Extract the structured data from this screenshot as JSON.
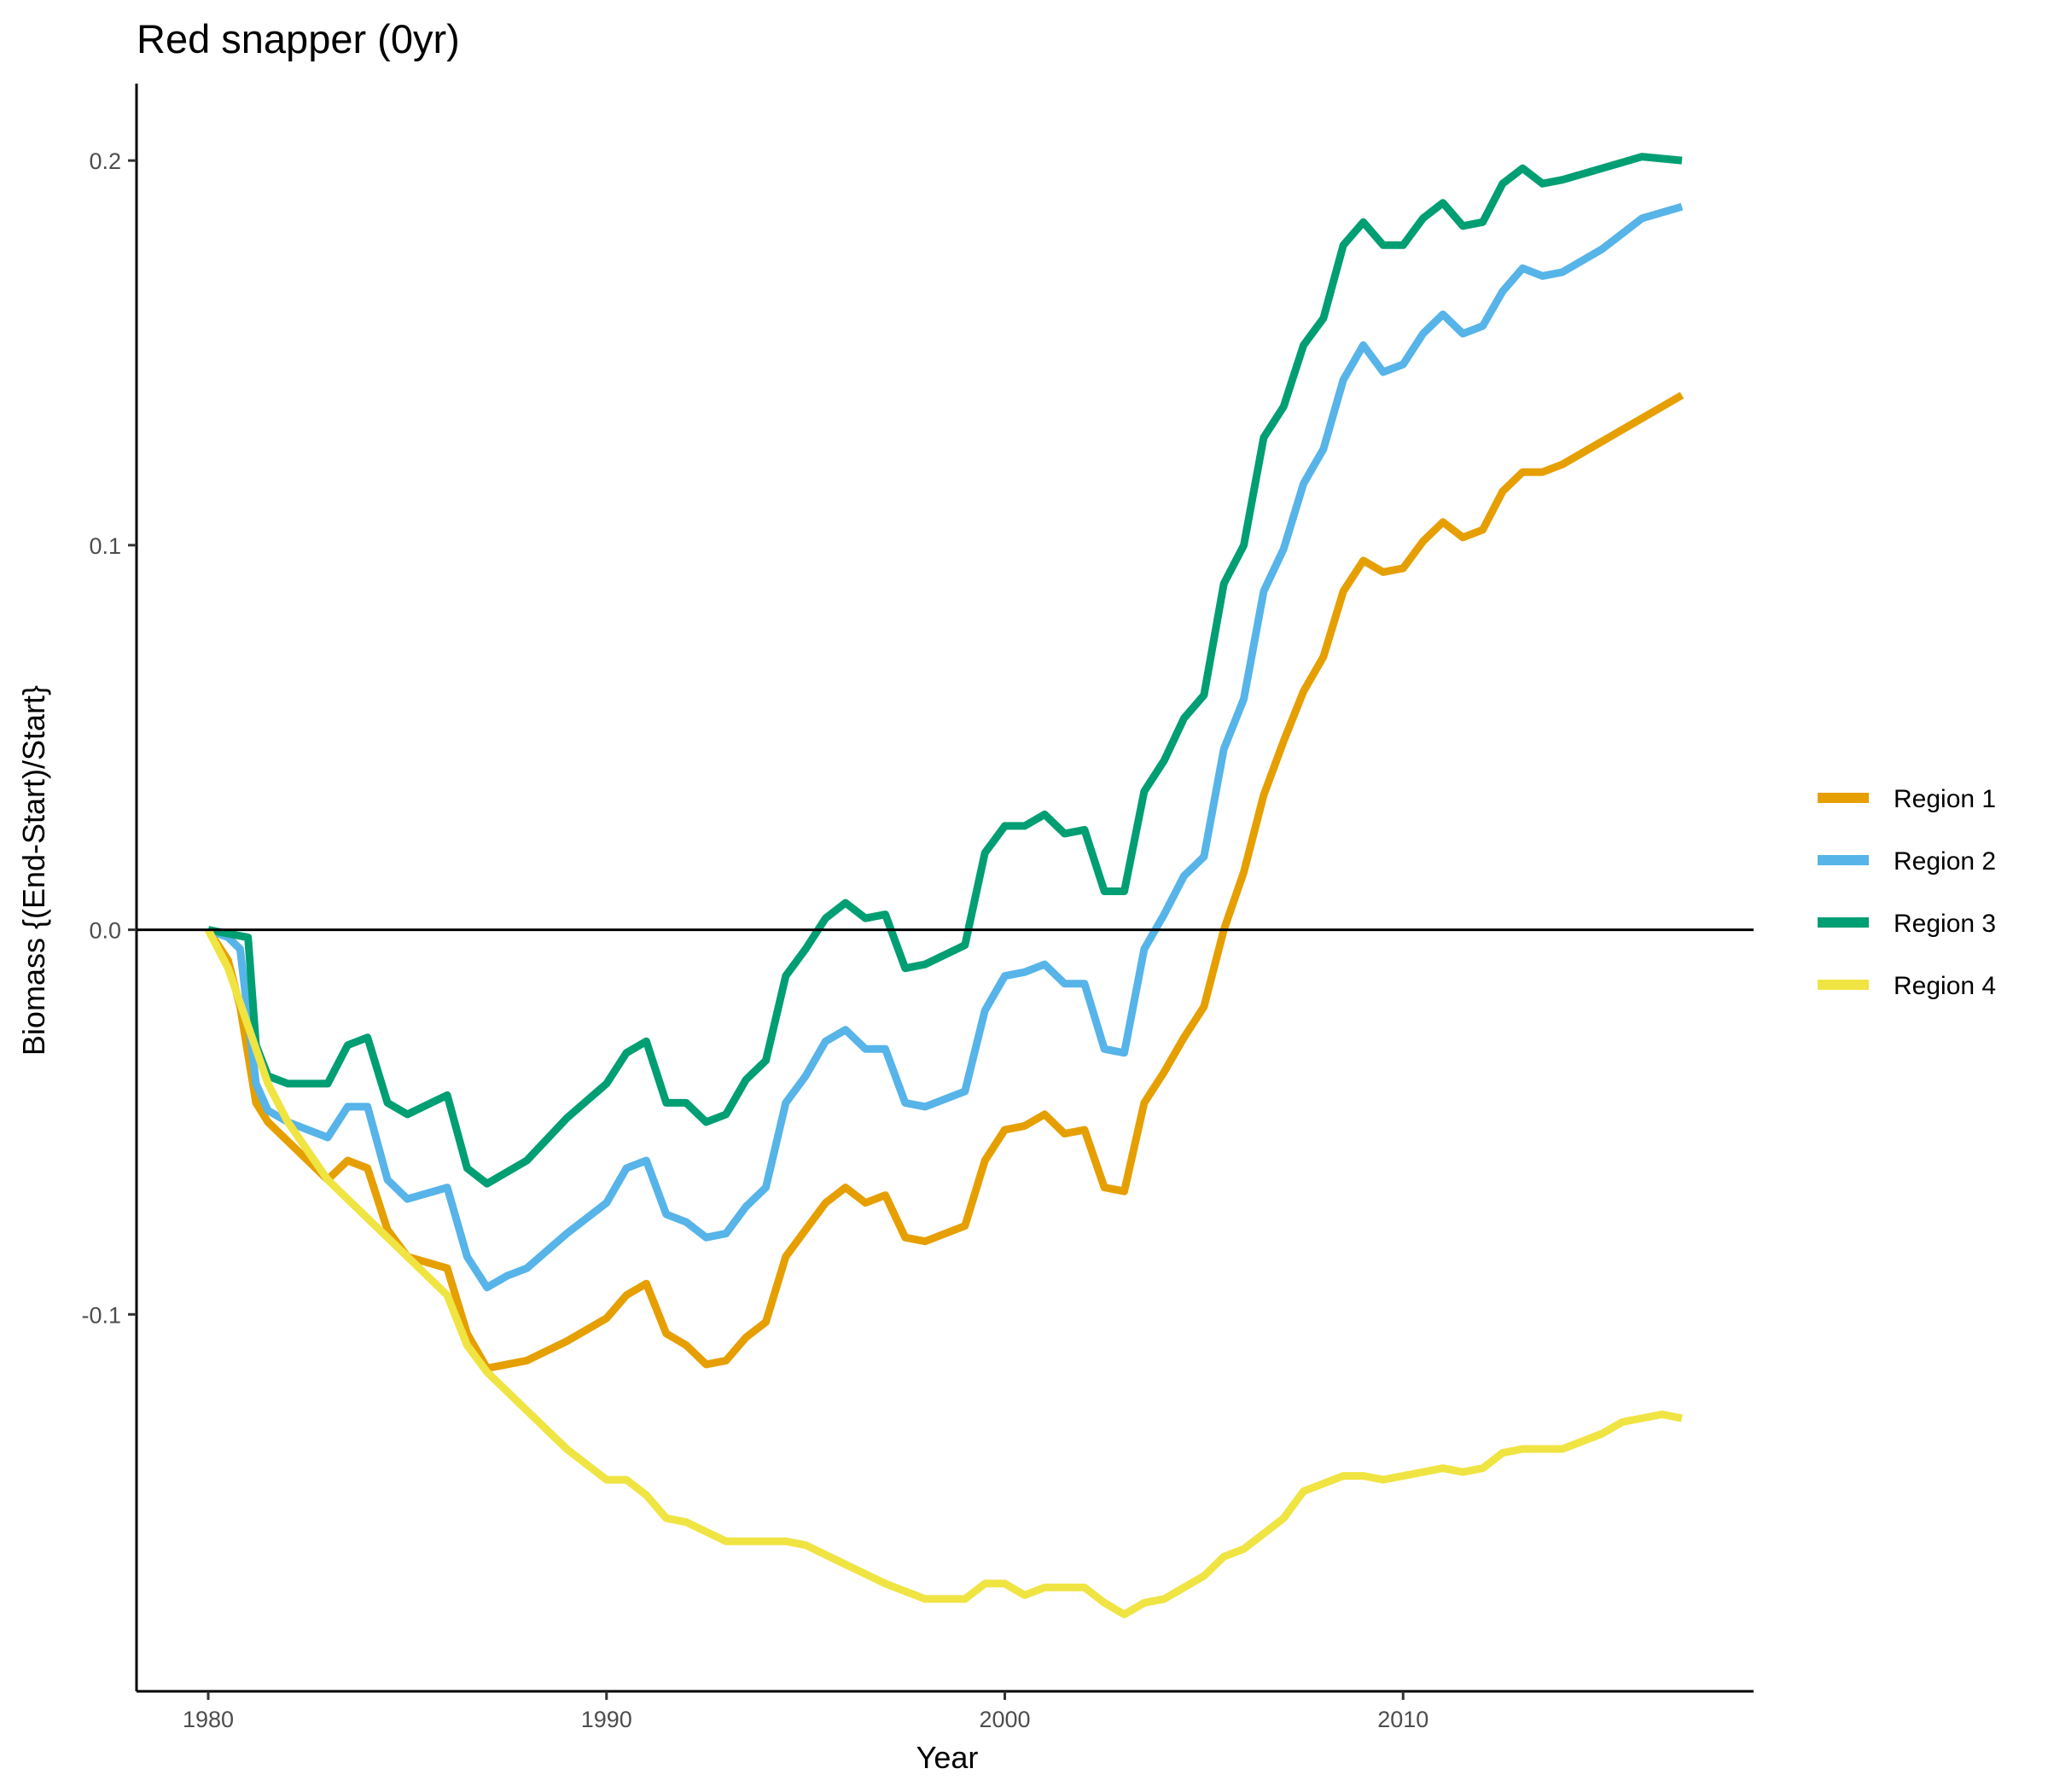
{
  "chart_data": {
    "type": "line",
    "title": "Red snapper (0yr)",
    "xlabel": "Year",
    "ylabel": "Biomass {(End-Start)/Start}",
    "xlim": [
      1978.2,
      2018.8
    ],
    "ylim": [
      -0.198,
      0.22
    ],
    "x_ticks": [
      1980,
      1990,
      2000,
      2010
    ],
    "y_ticks": [
      -0.1,
      0.0,
      0.1,
      0.2
    ],
    "y_tick_labels": [
      "-0.1",
      "0.0",
      "0.1",
      "0.2"
    ],
    "reference_line_y": 0,
    "grid": false,
    "legend_position": "right",
    "series": [
      {
        "name": "Region 1",
        "color": "#E69F00",
        "points": [
          [
            1980.0,
            0.0
          ],
          [
            1980.5,
            -0.008
          ],
          [
            1980.8,
            -0.02
          ],
          [
            1981.2,
            -0.045
          ],
          [
            1981.5,
            -0.05
          ],
          [
            1982.0,
            -0.055
          ],
          [
            1983.0,
            -0.065
          ],
          [
            1983.5,
            -0.06
          ],
          [
            1984.0,
            -0.062
          ],
          [
            1984.5,
            -0.078
          ],
          [
            1985.0,
            -0.085
          ],
          [
            1986.0,
            -0.088
          ],
          [
            1986.5,
            -0.105
          ],
          [
            1987.0,
            -0.114
          ],
          [
            1987.5,
            -0.113
          ],
          [
            1988.0,
            -0.112
          ],
          [
            1989.0,
            -0.107
          ],
          [
            1990.0,
            -0.101
          ],
          [
            1990.5,
            -0.095
          ],
          [
            1991.0,
            -0.092
          ],
          [
            1991.5,
            -0.105
          ],
          [
            1992.0,
            -0.108
          ],
          [
            1992.5,
            -0.113
          ],
          [
            1993.0,
            -0.112
          ],
          [
            1993.5,
            -0.106
          ],
          [
            1994.0,
            -0.102
          ],
          [
            1994.5,
            -0.085
          ],
          [
            1995.0,
            -0.078
          ],
          [
            1995.5,
            -0.071
          ],
          [
            1996.0,
            -0.067
          ],
          [
            1996.5,
            -0.071
          ],
          [
            1997.0,
            -0.069
          ],
          [
            1997.5,
            -0.08
          ],
          [
            1998.0,
            -0.081
          ],
          [
            1999.0,
            -0.077
          ],
          [
            1999.5,
            -0.06
          ],
          [
            2000.0,
            -0.052
          ],
          [
            2000.5,
            -0.051
          ],
          [
            2001.0,
            -0.048
          ],
          [
            2001.5,
            -0.053
          ],
          [
            2002.0,
            -0.052
          ],
          [
            2002.5,
            -0.067
          ],
          [
            2003.0,
            -0.068
          ],
          [
            2003.5,
            -0.045
          ],
          [
            2004.0,
            -0.037
          ],
          [
            2004.5,
            -0.028
          ],
          [
            2005.0,
            -0.02
          ],
          [
            2005.5,
            0.0
          ],
          [
            2006.0,
            0.015
          ],
          [
            2006.5,
            0.035
          ],
          [
            2007.0,
            0.049
          ],
          [
            2007.5,
            0.062
          ],
          [
            2008.0,
            0.071
          ],
          [
            2008.5,
            0.088
          ],
          [
            2009.0,
            0.096
          ],
          [
            2009.5,
            0.093
          ],
          [
            2010.0,
            0.094
          ],
          [
            2010.5,
            0.101
          ],
          [
            2011.0,
            0.106
          ],
          [
            2011.5,
            0.102
          ],
          [
            2012.0,
            0.104
          ],
          [
            2012.5,
            0.114
          ],
          [
            2013.0,
            0.119
          ],
          [
            2013.5,
            0.119
          ],
          [
            2014.0,
            0.121
          ],
          [
            2015.0,
            0.127
          ],
          [
            2016.0,
            0.133
          ],
          [
            2017.0,
            0.139
          ]
        ]
      },
      {
        "name": "Region 2",
        "color": "#56B4E9",
        "points": [
          [
            1980.0,
            0.0
          ],
          [
            1980.5,
            -0.002
          ],
          [
            1980.8,
            -0.005
          ],
          [
            1981.2,
            -0.04
          ],
          [
            1981.5,
            -0.047
          ],
          [
            1982.0,
            -0.05
          ],
          [
            1983.0,
            -0.054
          ],
          [
            1983.5,
            -0.046
          ],
          [
            1984.0,
            -0.046
          ],
          [
            1984.5,
            -0.065
          ],
          [
            1985.0,
            -0.07
          ],
          [
            1986.0,
            -0.067
          ],
          [
            1986.5,
            -0.085
          ],
          [
            1987.0,
            -0.093
          ],
          [
            1987.5,
            -0.09
          ],
          [
            1988.0,
            -0.088
          ],
          [
            1989.0,
            -0.079
          ],
          [
            1990.0,
            -0.071
          ],
          [
            1990.5,
            -0.062
          ],
          [
            1991.0,
            -0.06
          ],
          [
            1991.5,
            -0.074
          ],
          [
            1992.0,
            -0.076
          ],
          [
            1992.5,
            -0.08
          ],
          [
            1993.0,
            -0.079
          ],
          [
            1993.5,
            -0.072
          ],
          [
            1994.0,
            -0.067
          ],
          [
            1994.5,
            -0.045
          ],
          [
            1995.0,
            -0.038
          ],
          [
            1995.5,
            -0.029
          ],
          [
            1996.0,
            -0.026
          ],
          [
            1996.5,
            -0.031
          ],
          [
            1997.0,
            -0.031
          ],
          [
            1997.5,
            -0.045
          ],
          [
            1998.0,
            -0.046
          ],
          [
            1999.0,
            -0.042
          ],
          [
            1999.5,
            -0.021
          ],
          [
            2000.0,
            -0.012
          ],
          [
            2000.5,
            -0.011
          ],
          [
            2001.0,
            -0.009
          ],
          [
            2001.5,
            -0.014
          ],
          [
            2002.0,
            -0.014
          ],
          [
            2002.5,
            -0.031
          ],
          [
            2003.0,
            -0.032
          ],
          [
            2003.5,
            -0.005
          ],
          [
            2004.0,
            0.004
          ],
          [
            2004.5,
            0.014
          ],
          [
            2005.0,
            0.019
          ],
          [
            2005.5,
            0.047
          ],
          [
            2006.0,
            0.06
          ],
          [
            2006.5,
            0.088
          ],
          [
            2007.0,
            0.099
          ],
          [
            2007.5,
            0.116
          ],
          [
            2008.0,
            0.125
          ],
          [
            2008.5,
            0.143
          ],
          [
            2009.0,
            0.152
          ],
          [
            2009.5,
            0.145
          ],
          [
            2010.0,
            0.147
          ],
          [
            2010.5,
            0.155
          ],
          [
            2011.0,
            0.16
          ],
          [
            2011.5,
            0.155
          ],
          [
            2012.0,
            0.157
          ],
          [
            2012.5,
            0.166
          ],
          [
            2013.0,
            0.172
          ],
          [
            2013.5,
            0.17
          ],
          [
            2014.0,
            0.171
          ],
          [
            2015.0,
            0.177
          ],
          [
            2016.0,
            0.185
          ],
          [
            2017.0,
            0.188
          ]
        ]
      },
      {
        "name": "Region 3",
        "color": "#009E73",
        "points": [
          [
            1980.0,
            0.0
          ],
          [
            1980.5,
            -0.001
          ],
          [
            1981.0,
            -0.002
          ],
          [
            1981.2,
            -0.03
          ],
          [
            1981.5,
            -0.038
          ],
          [
            1982.0,
            -0.04
          ],
          [
            1983.0,
            -0.04
          ],
          [
            1983.5,
            -0.03
          ],
          [
            1984.0,
            -0.028
          ],
          [
            1984.5,
            -0.045
          ],
          [
            1985.0,
            -0.048
          ],
          [
            1986.0,
            -0.043
          ],
          [
            1986.5,
            -0.062
          ],
          [
            1987.0,
            -0.066
          ],
          [
            1987.5,
            -0.063
          ],
          [
            1988.0,
            -0.06
          ],
          [
            1989.0,
            -0.049
          ],
          [
            1990.0,
            -0.04
          ],
          [
            1990.5,
            -0.032
          ],
          [
            1991.0,
            -0.029
          ],
          [
            1991.5,
            -0.045
          ],
          [
            1992.0,
            -0.045
          ],
          [
            1992.5,
            -0.05
          ],
          [
            1993.0,
            -0.048
          ],
          [
            1993.5,
            -0.039
          ],
          [
            1994.0,
            -0.034
          ],
          [
            1994.5,
            -0.012
          ],
          [
            1995.0,
            -0.005
          ],
          [
            1995.5,
            0.003
          ],
          [
            1996.0,
            0.007
          ],
          [
            1996.5,
            0.003
          ],
          [
            1997.0,
            0.004
          ],
          [
            1997.5,
            -0.01
          ],
          [
            1998.0,
            -0.009
          ],
          [
            1999.0,
            -0.004
          ],
          [
            1999.5,
            0.02
          ],
          [
            2000.0,
            0.027
          ],
          [
            2000.5,
            0.027
          ],
          [
            2001.0,
            0.03
          ],
          [
            2001.5,
            0.025
          ],
          [
            2002.0,
            0.026
          ],
          [
            2002.5,
            0.01
          ],
          [
            2003.0,
            0.01
          ],
          [
            2003.5,
            0.036
          ],
          [
            2004.0,
            0.044
          ],
          [
            2004.5,
            0.055
          ],
          [
            2005.0,
            0.061
          ],
          [
            2005.5,
            0.09
          ],
          [
            2006.0,
            0.1
          ],
          [
            2006.5,
            0.128
          ],
          [
            2007.0,
            0.136
          ],
          [
            2007.5,
            0.152
          ],
          [
            2008.0,
            0.159
          ],
          [
            2008.5,
            0.178
          ],
          [
            2009.0,
            0.184
          ],
          [
            2009.5,
            0.178
          ],
          [
            2010.0,
            0.178
          ],
          [
            2010.5,
            0.185
          ],
          [
            2011.0,
            0.189
          ],
          [
            2011.5,
            0.183
          ],
          [
            2012.0,
            0.184
          ],
          [
            2012.5,
            0.194
          ],
          [
            2013.0,
            0.198
          ],
          [
            2013.5,
            0.194
          ],
          [
            2014.0,
            0.195
          ],
          [
            2015.0,
            0.198
          ],
          [
            2016.0,
            0.201
          ],
          [
            2017.0,
            0.2
          ]
        ]
      },
      {
        "name": "Region 4",
        "color": "#F0E442",
        "points": [
          [
            1980.0,
            0.0
          ],
          [
            1980.5,
            -0.01
          ],
          [
            1981.0,
            -0.025
          ],
          [
            1981.5,
            -0.04
          ],
          [
            1982.0,
            -0.05
          ],
          [
            1983.0,
            -0.065
          ],
          [
            1984.0,
            -0.075
          ],
          [
            1985.0,
            -0.085
          ],
          [
            1986.0,
            -0.095
          ],
          [
            1986.5,
            -0.108
          ],
          [
            1987.0,
            -0.115
          ],
          [
            1988.0,
            -0.125
          ],
          [
            1989.0,
            -0.135
          ],
          [
            1990.0,
            -0.143
          ],
          [
            1990.5,
            -0.143
          ],
          [
            1991.0,
            -0.147
          ],
          [
            1991.5,
            -0.153
          ],
          [
            1992.0,
            -0.154
          ],
          [
            1993.0,
            -0.159
          ],
          [
            1994.0,
            -0.159
          ],
          [
            1994.5,
            -0.159
          ],
          [
            1995.0,
            -0.16
          ],
          [
            1996.0,
            -0.165
          ],
          [
            1997.0,
            -0.17
          ],
          [
            1998.0,
            -0.174
          ],
          [
            1999.0,
            -0.174
          ],
          [
            1999.5,
            -0.17
          ],
          [
            2000.0,
            -0.17
          ],
          [
            2000.5,
            -0.173
          ],
          [
            2001.0,
            -0.171
          ],
          [
            2002.0,
            -0.171
          ],
          [
            2002.5,
            -0.175
          ],
          [
            2003.0,
            -0.178
          ],
          [
            2003.5,
            -0.175
          ],
          [
            2004.0,
            -0.174
          ],
          [
            2005.0,
            -0.168
          ],
          [
            2005.5,
            -0.163
          ],
          [
            2006.0,
            -0.161
          ],
          [
            2007.0,
            -0.153
          ],
          [
            2007.5,
            -0.146
          ],
          [
            2008.0,
            -0.144
          ],
          [
            2008.5,
            -0.142
          ],
          [
            2009.0,
            -0.142
          ],
          [
            2009.5,
            -0.143
          ],
          [
            2010.0,
            -0.142
          ],
          [
            2010.5,
            -0.141
          ],
          [
            2011.0,
            -0.14
          ],
          [
            2011.5,
            -0.141
          ],
          [
            2012.0,
            -0.14
          ],
          [
            2012.5,
            -0.136
          ],
          [
            2013.0,
            -0.135
          ],
          [
            2014.0,
            -0.135
          ],
          [
            2014.5,
            -0.133
          ],
          [
            2015.0,
            -0.131
          ],
          [
            2015.5,
            -0.128
          ],
          [
            2016.0,
            -0.127
          ],
          [
            2016.5,
            -0.126
          ],
          [
            2017.0,
            -0.127
          ]
        ]
      }
    ]
  }
}
